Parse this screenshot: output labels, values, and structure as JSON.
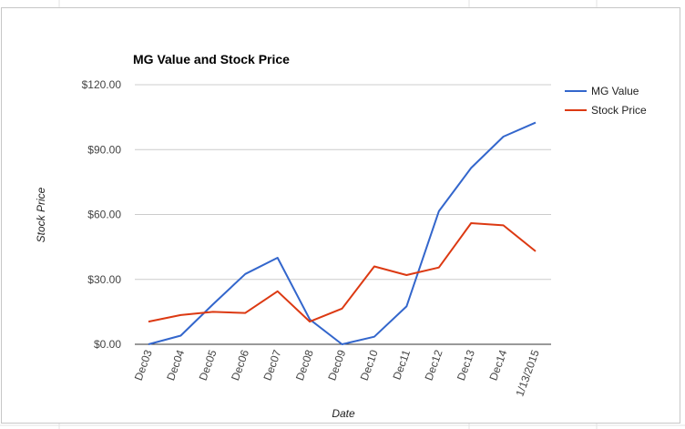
{
  "chart_data": {
    "type": "line",
    "title": "MG Value and Stock Price",
    "xlabel": "Date",
    "ylabel": "Stock Price",
    "categories": [
      "Dec03",
      "Dec04",
      "Dec05",
      "Dec06",
      "Dec07",
      "Dec08",
      "Dec09",
      "Dec10",
      "Dec11",
      "Dec12",
      "Dec13",
      "Dec14",
      "1/13/2015"
    ],
    "ylim": [
      0,
      120
    ],
    "yticks": [
      "$0.00",
      "$30.00",
      "$60.00",
      "$90.00",
      "$120.00"
    ],
    "ytick_values": [
      0,
      30,
      60,
      90,
      120
    ],
    "grid": true,
    "legend_position": "right",
    "series": [
      {
        "name": "MG Value",
        "color": "#3366cc",
        "values": [
          0,
          4,
          18.5,
          32.5,
          40,
          11.5,
          0,
          3.5,
          17.5,
          61.5,
          81.5,
          96,
          102.5
        ]
      },
      {
        "name": "Stock Price",
        "color": "#dc3912",
        "values": [
          10.5,
          13.5,
          15,
          14.5,
          24.5,
          10.5,
          16.5,
          36,
          32,
          35.5,
          56,
          55,
          43
        ]
      }
    ]
  }
}
